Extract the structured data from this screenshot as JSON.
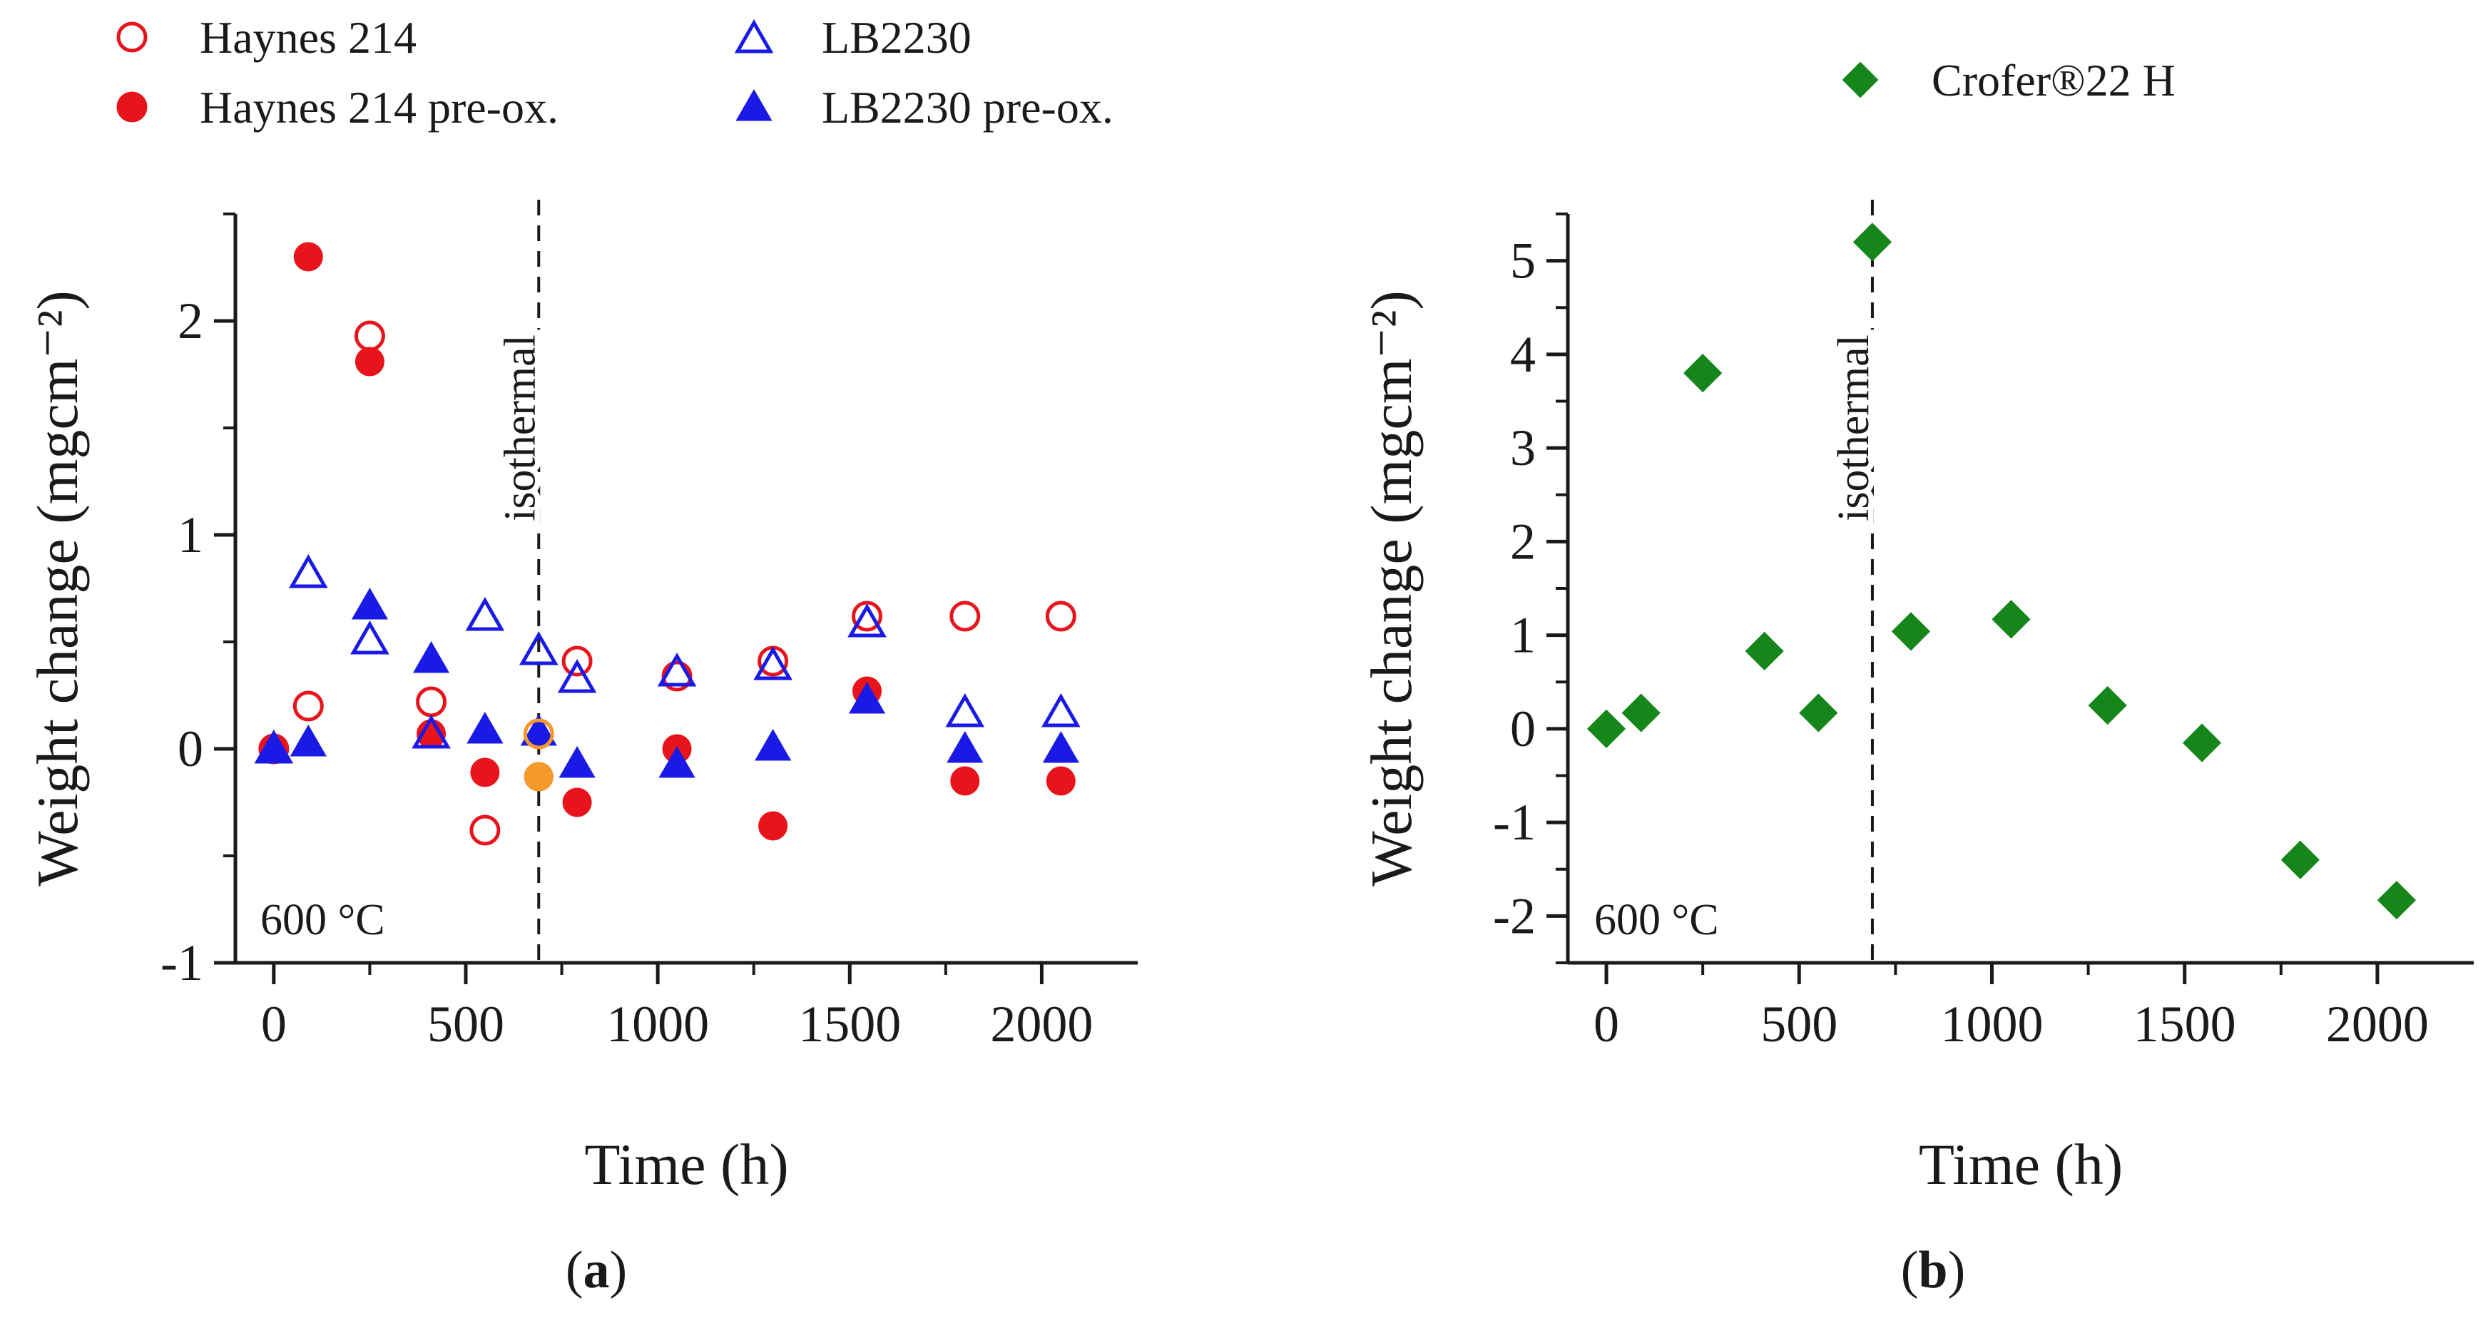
{
  "panel_labels": {
    "a_open": "(",
    "a": "a",
    "a_close": ")",
    "b_open": "(",
    "b": "b",
    "b_close": ")"
  },
  "chart_data": [
    {
      "type": "scatter",
      "panel": "a",
      "xlabel": "Time (h)",
      "ylabel": "Weight change (mgcm⁻²)",
      "xlim": [
        -100,
        2250
      ],
      "ylim": [
        -1,
        2.5
      ],
      "xticks": [
        0,
        500,
        1000,
        1500,
        2000
      ],
      "yticks": [
        -1,
        0,
        1,
        2
      ],
      "ytick_labels": [
        "-1",
        "0",
        "1",
        "2"
      ],
      "annotation_temp": "600 °C",
      "annotation_line": "isothermal",
      "isothermal_x": 690,
      "legend_position": "top",
      "series": [
        {
          "name": "Haynes 214",
          "marker": "circle-open",
          "color": "#e8141b",
          "points": [
            [
              0,
              0.0
            ],
            [
              90,
              0.2
            ],
            [
              250,
              1.93
            ],
            [
              410,
              0.22
            ],
            [
              550,
              -0.38
            ],
            [
              690,
              0.07
            ],
            [
              790,
              0.41
            ],
            [
              1050,
              0.34
            ],
            [
              1300,
              0.41
            ],
            [
              1545,
              0.62
            ],
            [
              1800,
              0.62
            ],
            [
              2050,
              0.62
            ]
          ]
        },
        {
          "name": "Haynes 214 pre-ox.",
          "marker": "circle-filled",
          "color": "#e8141b",
          "points": [
            [
              0,
              0.0
            ],
            [
              90,
              2.3
            ],
            [
              250,
              1.81
            ],
            [
              410,
              0.07
            ],
            [
              550,
              -0.11
            ],
            [
              690,
              -0.13
            ],
            [
              790,
              -0.25
            ],
            [
              1050,
              0.0
            ],
            [
              1300,
              -0.36
            ],
            [
              1545,
              0.27
            ],
            [
              1800,
              -0.15
            ],
            [
              2050,
              -0.15
            ]
          ]
        },
        {
          "name": "LB2230",
          "marker": "triangle-open",
          "color": "#1a1ae6",
          "points": [
            [
              0,
              0.0
            ],
            [
              90,
              0.82
            ],
            [
              250,
              0.51
            ],
            [
              410,
              0.07
            ],
            [
              550,
              0.62
            ],
            [
              690,
              0.46
            ],
            [
              790,
              0.33
            ],
            [
              1050,
              0.36
            ],
            [
              1300,
              0.39
            ],
            [
              1545,
              0.59
            ],
            [
              1800,
              0.17
            ],
            [
              2050,
              0.17
            ]
          ]
        },
        {
          "name": "LB2230 pre-ox.",
          "marker": "triangle-filled",
          "color": "#1a1ae6",
          "points": [
            [
              0,
              0.0
            ],
            [
              90,
              0.03
            ],
            [
              250,
              0.67
            ],
            [
              410,
              0.42
            ],
            [
              550,
              0.09
            ],
            [
              690,
              0.08
            ],
            [
              790,
              -0.07
            ],
            [
              1050,
              -0.07
            ],
            [
              1300,
              0.01
            ],
            [
              1545,
              0.23
            ],
            [
              1800,
              0.0
            ],
            [
              2050,
              0.0
            ]
          ]
        }
      ],
      "highlight_points": [
        {
          "marker": "circle-open",
          "color": "#f39a2a",
          "point": [
            690,
            0.07
          ]
        },
        {
          "marker": "circle-filled",
          "color": "#f39a2a",
          "point": [
            690,
            -0.13
          ]
        }
      ]
    },
    {
      "type": "scatter",
      "panel": "b",
      "xlabel": "Time (h)",
      "ylabel": "Weight change (mgcm⁻²)",
      "xlim": [
        -100,
        2250
      ],
      "ylim": [
        -2.5,
        5.5
      ],
      "xticks": [
        0,
        500,
        1000,
        1500,
        2000
      ],
      "yticks": [
        -2,
        -1,
        0,
        1,
        2,
        3,
        4,
        5
      ],
      "ytick_labels": [
        "-2",
        "-1",
        "0",
        "1",
        "2",
        "3",
        "4",
        "5"
      ],
      "annotation_temp": "600 °C",
      "annotation_line": "isothermal",
      "isothermal_x": 690,
      "legend_position": "top",
      "series": [
        {
          "name": "Crofer®22 H",
          "marker": "diamond-filled",
          "color": "#17861a",
          "points": [
            [
              0,
              0.0
            ],
            [
              90,
              0.17
            ],
            [
              250,
              3.8
            ],
            [
              410,
              0.83
            ],
            [
              550,
              0.17
            ],
            [
              690,
              5.2
            ],
            [
              790,
              1.04
            ],
            [
              1050,
              1.17
            ],
            [
              1300,
              0.25
            ],
            [
              1545,
              -0.15
            ],
            [
              1800,
              -1.4
            ],
            [
              2050,
              -1.83
            ]
          ]
        }
      ]
    }
  ]
}
